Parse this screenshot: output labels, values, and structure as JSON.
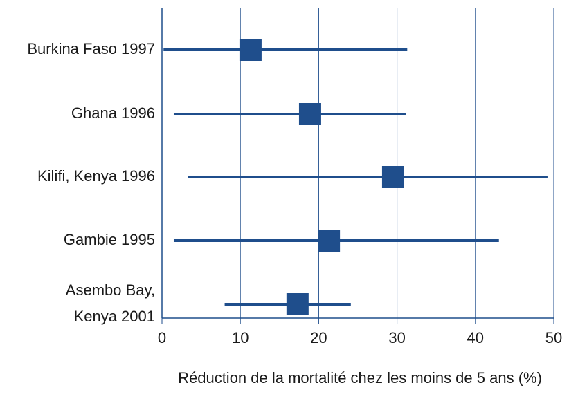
{
  "chart_data": {
    "type": "forest",
    "categories": [
      [
        "Burkina Faso 1997"
      ],
      [
        "Ghana 1996"
      ],
      [
        "Kilifi, Kenya 1996"
      ],
      [
        "Gambie 1995"
      ],
      [
        "Asembo Bay,",
        "Kenya 2001"
      ]
    ],
    "values": [
      11.3,
      18.9,
      29.5,
      21.3,
      17.3
    ],
    "lower": [
      0.2,
      1.5,
      3.3,
      1.5,
      8
    ],
    "upper": [
      31.3,
      31.1,
      49.2,
      43,
      24.1
    ],
    "color": "#1f4e8c",
    "xlabel": "Réduction de la mortalité chez les moins de 5 ans (%)",
    "xlim": [
      0,
      50
    ],
    "xticks": [
      0,
      10,
      20,
      30,
      40,
      50
    ],
    "grid": true
  }
}
